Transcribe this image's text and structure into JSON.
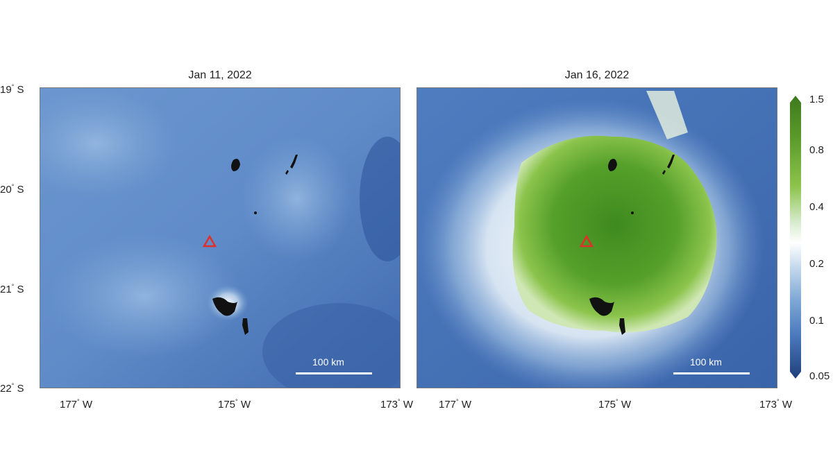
{
  "panels": [
    {
      "title": "Jan 11, 2022",
      "state": "before"
    },
    {
      "title": "Jan 16, 2022",
      "state": "after"
    }
  ],
  "lat_ticks": [
    {
      "deg": "19",
      "hem": "S"
    },
    {
      "deg": "20",
      "hem": "S"
    },
    {
      "deg": "21",
      "hem": "S"
    },
    {
      "deg": "22",
      "hem": "S"
    }
  ],
  "lon_ticks": [
    {
      "deg": "177",
      "hem": "W"
    },
    {
      "deg": "175",
      "hem": "W"
    },
    {
      "deg": "173",
      "hem": "W"
    }
  ],
  "scale_bar": {
    "label": "100 km"
  },
  "colorbar": {
    "ticks": [
      "1.5",
      "0.8",
      "0.4",
      "0.2",
      "0.1",
      "0.05"
    ],
    "colors": [
      "#3d7a1e",
      "#5a9b2a",
      "#8cc44c",
      "#d8ecd0",
      "#ffffff",
      "#c9dcee",
      "#7fa9d6",
      "#4a78bb",
      "#1f3f7a"
    ]
  },
  "marker": {
    "symbol": "triangle",
    "color": "#e0302c"
  },
  "legend_colors": {
    "ocean_low": "#3d6cb0",
    "ocean_mid": "#5a8ccc",
    "plume_high": "#4f9326",
    "land": "#111111"
  }
}
